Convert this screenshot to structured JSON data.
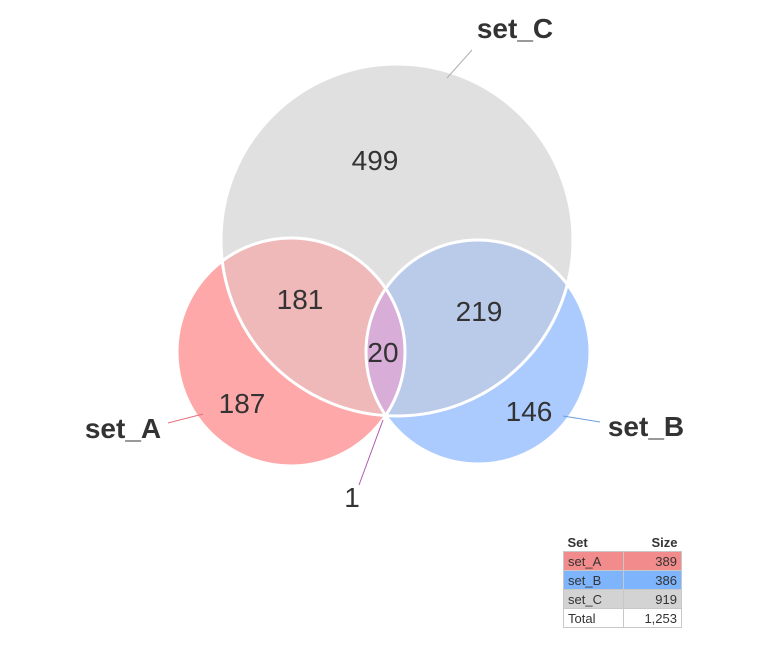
{
  "chart_data": {
    "type": "venn",
    "sets": [
      {
        "name": "set_A",
        "size": 389,
        "color": "#FF8080"
      },
      {
        "name": "set_B",
        "size": 386,
        "color": "#80B3FF"
      },
      {
        "name": "set_C",
        "size": 919,
        "color": "#CCCCCC"
      }
    ],
    "regions": [
      {
        "sets": [
          "set_A"
        ],
        "value": 187
      },
      {
        "sets": [
          "set_B"
        ],
        "value": 146
      },
      {
        "sets": [
          "set_C"
        ],
        "value": 499
      },
      {
        "sets": [
          "set_A",
          "set_C"
        ],
        "value": 181
      },
      {
        "sets": [
          "set_B",
          "set_C"
        ],
        "value": 219
      },
      {
        "sets": [
          "set_A",
          "set_B",
          "set_C"
        ],
        "value": 20
      },
      {
        "sets": [
          "set_A",
          "set_B"
        ],
        "value": 1
      }
    ],
    "region_labels": {
      "a_only": "187",
      "b_only": "146",
      "c_only": "499",
      "a_c": "181",
      "b_c": "219",
      "a_b_c": "20",
      "a_b": "1"
    },
    "set_labels": {
      "a": "set_A",
      "b": "set_B",
      "c": "set_C"
    }
  },
  "table": {
    "header_set": "Set",
    "header_size": "Size",
    "rows": [
      {
        "name": "set_A",
        "size": "389",
        "color": "#F28B8B"
      },
      {
        "name": "set_B",
        "size": "386",
        "color": "#7DB4FB"
      },
      {
        "name": "set_C",
        "size": "919",
        "color": "#D3D3D3"
      }
    ],
    "total_label": "Total",
    "total_value": "1,253"
  }
}
